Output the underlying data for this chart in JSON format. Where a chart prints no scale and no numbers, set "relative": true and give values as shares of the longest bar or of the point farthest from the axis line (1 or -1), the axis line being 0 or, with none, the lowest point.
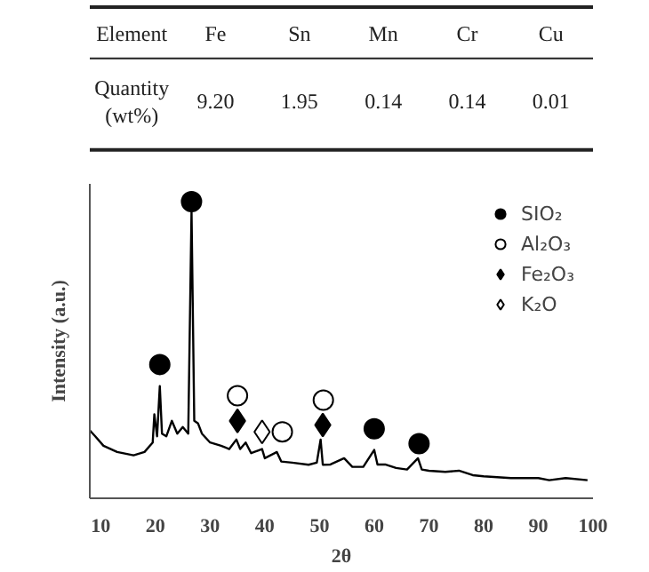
{
  "chart_data": [
    {
      "type": "other",
      "xlabel": "Element",
      "ylabel": "Quantity (wt%)",
      "categories": [
        "Fe",
        "Sn",
        "Mn",
        "Cr",
        "Cu"
      ],
      "value_labels": [
        "9.20",
        "1.95",
        "0.14",
        "0.14",
        "0.01"
      ]
    },
    {
      "type": "line",
      "relative": true,
      "xlabel": "2θ",
      "ylabel": "Intensity (a.u.)",
      "xlim": [
        8,
        100
      ],
      "xticks": [
        10,
        20,
        30,
        40,
        50,
        60,
        70,
        80,
        90,
        100
      ],
      "tick_labels": "x",
      "grid": false,
      "legend": "top right",
      "series": [
        {
          "type": "line",
          "color": "#000000",
          "x": [
            8,
            9,
            10.5,
            13,
            16,
            18,
            19.5,
            19.8,
            20.3,
            20.8,
            21.2,
            22,
            23,
            24,
            25,
            26,
            26.6,
            27.1,
            27.8,
            28.5,
            30,
            32,
            33.5,
            34.8,
            35.5,
            36.5,
            37.5,
            39.5,
            40,
            42.2,
            43,
            45,
            48,
            49.5,
            50.2,
            50.6,
            52,
            54.5,
            56,
            58,
            60,
            60.6,
            62,
            64,
            66,
            68,
            68.7,
            70,
            73,
            75.5,
            78,
            80,
            85,
            90,
            92,
            95,
            99
          ],
          "values": [
            0.229,
            0.209,
            0.177,
            0.156,
            0.145,
            0.156,
            0.188,
            0.283,
            0.209,
            0.378,
            0.218,
            0.209,
            0.261,
            0.218,
            0.24,
            0.218,
            0.968,
            0.261,
            0.252,
            0.218,
            0.188,
            0.177,
            0.166,
            0.198,
            0.166,
            0.188,
            0.152,
            0.166,
            0.135,
            0.156,
            0.124,
            0.12,
            0.113,
            0.12,
            0.198,
            0.113,
            0.114,
            0.135,
            0.106,
            0.106,
            0.163,
            0.114,
            0.114,
            0.102,
            0.097,
            0.135,
            0.097,
            0.093,
            0.089,
            0.093,
            0.078,
            0.074,
            0.068,
            0.068,
            0.061,
            0.068,
            0.061
          ]
        },
        {
          "type": "scatter",
          "name": "SIO₂",
          "marker": "circle",
          "color": "#000000",
          "x": [
            20.8,
            26.6,
            60,
            68.2
          ],
          "values": [
            0.451,
            1.0,
            0.234,
            0.184
          ]
        },
        {
          "type": "scatter",
          "name": "Al₂O₃",
          "marker": "circle",
          "color": "#ffffff",
          "x": [
            35,
            43.2,
            50.7
          ],
          "values": [
            0.346,
            0.224,
            0.331
          ]
        },
        {
          "type": "scatter",
          "name": "Fe₂O₃",
          "marker": "diamond",
          "color": "#000000",
          "x": [
            35,
            50.6
          ],
          "values": [
            0.261,
            0.247
          ]
        },
        {
          "type": "scatter",
          "name": "K₂O",
          "marker": "diamond",
          "color": "#ffffff",
          "x": [
            39.5
          ],
          "values": [
            0.224
          ]
        }
      ]
    }
  ]
}
